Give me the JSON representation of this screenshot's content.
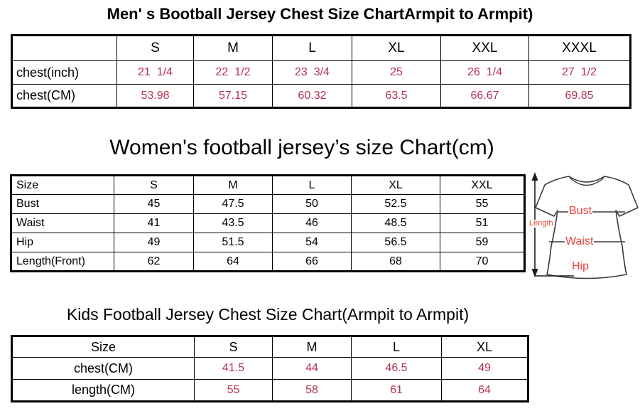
{
  "colors": {
    "value_red": "#b5324e",
    "diagram_label_red": "#e8433a",
    "table_border": "#000000",
    "background": "#ffffff"
  },
  "chart_data": [
    {
      "type": "table",
      "title": "Men' s Bootball Jersey Chest Size ChartArmpit to Armpit)",
      "columns": [
        "",
        "S",
        "M",
        "L",
        "XL",
        "XXL",
        "XXXL"
      ],
      "rows": [
        {
          "label": "chest(inch)",
          "values": [
            "21  1/4",
            "22  1/2",
            "23  3/4",
            "25",
            "26  1/4",
            "27  1/2"
          ]
        },
        {
          "label": "chest(CM)",
          "values": [
            "53.98",
            "57.15",
            "60.32",
            "63.5",
            "66.67",
            "69.85"
          ]
        }
      ],
      "value_color": "#b5324e"
    },
    {
      "type": "table",
      "title": "Women's football jersey’s size Chart(cm)",
      "columns": [
        "Size",
        "S",
        "M",
        "L",
        "XL",
        "XXL"
      ],
      "rows": [
        {
          "label": "Bust",
          "values": [
            "45",
            "47.5",
            "50",
            "52.5",
            "55"
          ]
        },
        {
          "label": "Waist",
          "values": [
            "41",
            "43.5",
            "46",
            "48.5",
            "51"
          ]
        },
        {
          "label": "Hip",
          "values": [
            "49",
            "51.5",
            "54",
            "56.5",
            "59"
          ]
        },
        {
          "label": "Length(Front)",
          "values": [
            "62",
            "64",
            "66",
            "68",
            "70"
          ]
        }
      ],
      "value_color": "#000000"
    },
    {
      "type": "table",
      "title": "Kids Football Jersey Chest Size Chart(Armpit to Armpit)",
      "columns": [
        "Size",
        "S",
        "M",
        "L",
        "XL"
      ],
      "rows": [
        {
          "label": "chest(CM)",
          "values": [
            "41.5",
            "44",
            "46.5",
            "49"
          ]
        },
        {
          "label": "length(CM)",
          "values": [
            "55",
            "58",
            "61",
            "64"
          ]
        }
      ],
      "value_color": "#b5324e"
    }
  ],
  "diagram": {
    "length_label": "Length",
    "bust_label": "Bust",
    "waist_label": "Waist",
    "hip_label": "Hip"
  }
}
